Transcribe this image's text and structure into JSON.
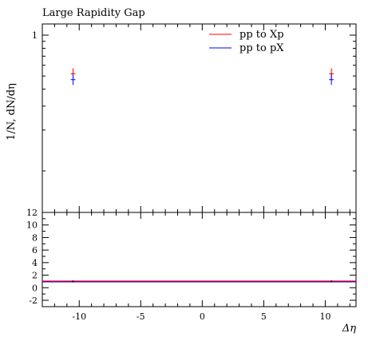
{
  "chart_data": [
    {
      "type": "scatter",
      "title": "Large Rapidity Gap",
      "xlabel": "",
      "ylabel": "1/N, dN/dη",
      "xlim": [
        -13,
        12.5
      ],
      "ylog": true,
      "yticks": [
        "1"
      ],
      "legend_position": "top-right",
      "series": [
        {
          "name": "pp to Xp",
          "color": "#ff0000",
          "points": [
            {
              "x": -10.5,
              "y": 0.52,
              "ylo": 0.47,
              "yhi": 0.57
            },
            {
              "x": 10.5,
              "y": 0.52,
              "ylo": 0.47,
              "yhi": 0.57
            }
          ]
        },
        {
          "name": "pp to pX",
          "color": "#0000ff",
          "points": [
            {
              "x": -10.5,
              "y": 0.47,
              "ylo": 0.43,
              "yhi": 0.52
            },
            {
              "x": 10.5,
              "y": 0.47,
              "ylo": 0.43,
              "yhi": 0.52
            }
          ]
        }
      ]
    },
    {
      "type": "line",
      "title": "",
      "xlabel": "Δη",
      "ylabel": "",
      "xlim": [
        -13,
        12.5
      ],
      "ylim": [
        -2,
        12
      ],
      "xticks": [
        "-10",
        "-5",
        "0",
        "5",
        "10"
      ],
      "yticks": [
        "-2",
        "0",
        "2",
        "4",
        "6",
        "8",
        "10",
        "12"
      ],
      "series": [
        {
          "name": "",
          "color": "#0000ff",
          "x": [
            -13,
            12.5
          ],
          "values": [
            1,
            1
          ]
        },
        {
          "name": "",
          "color": "#ff0000",
          "x": [
            -13,
            12.5
          ],
          "values": [
            1,
            1
          ]
        }
      ]
    }
  ]
}
